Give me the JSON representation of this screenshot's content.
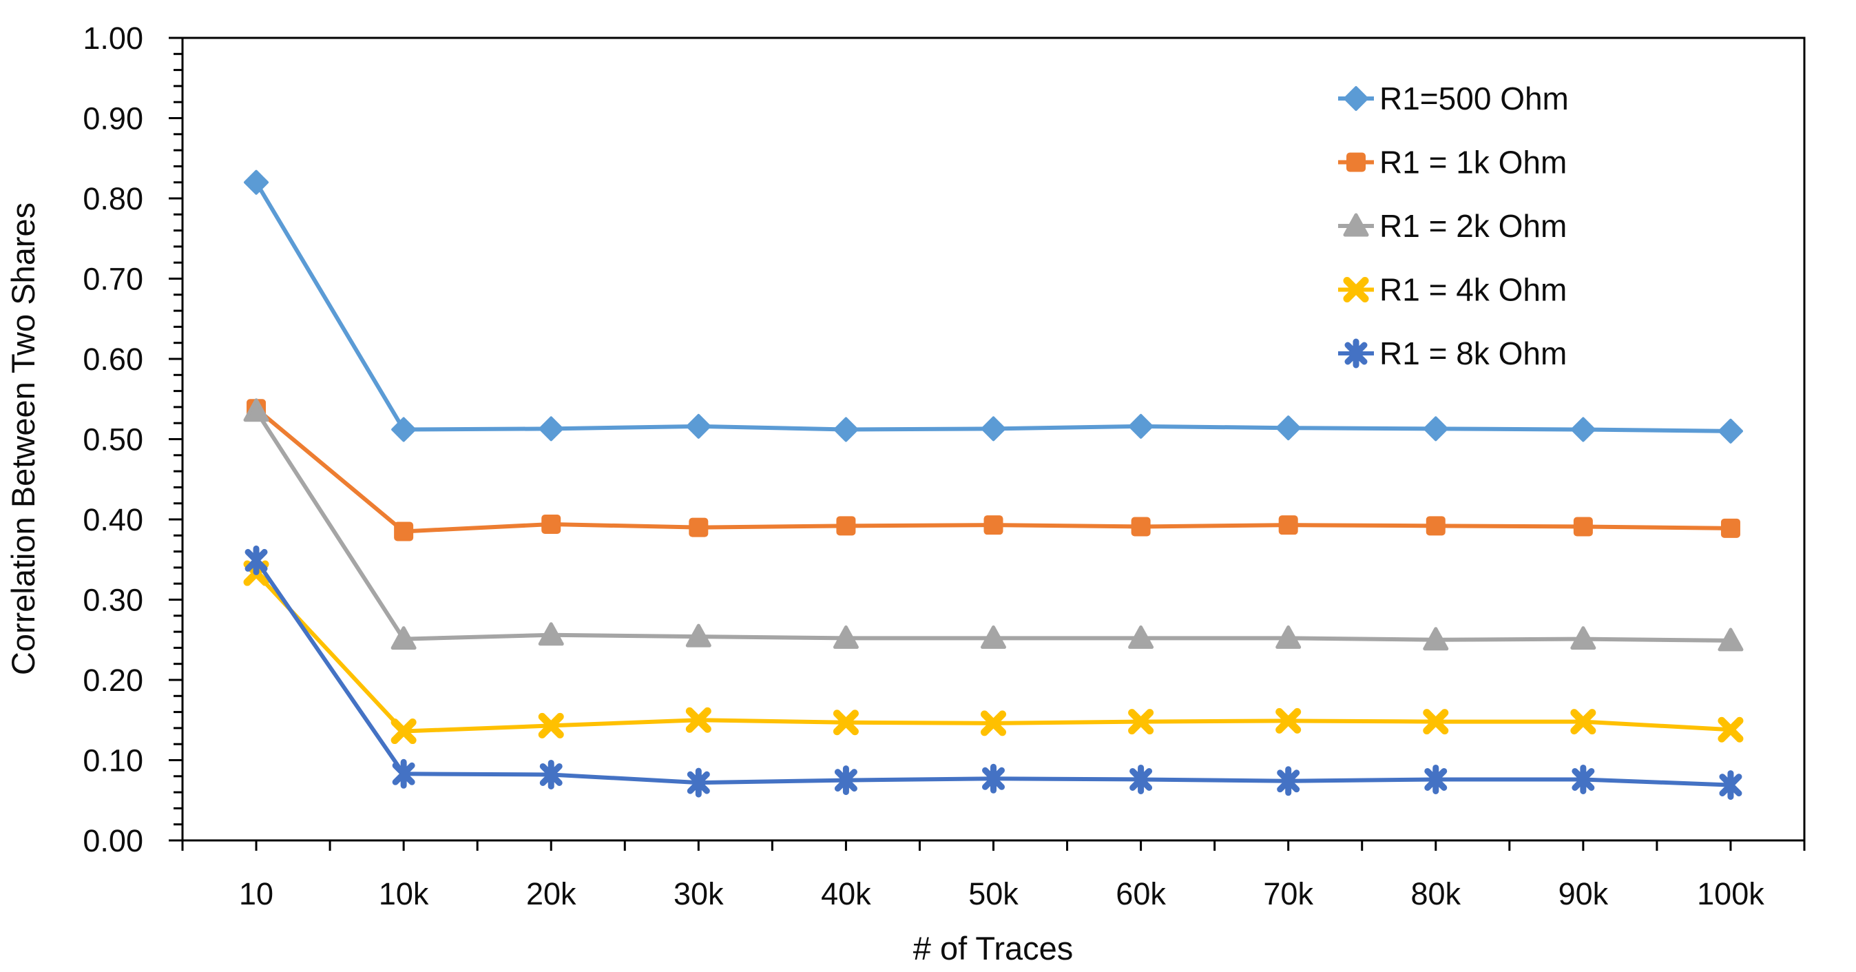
{
  "chart_data": {
    "type": "line",
    "title": "",
    "xlabel": "# of Traces",
    "ylabel": "Correlation Between Two Shares",
    "categories": [
      "10",
      "10k",
      "20k",
      "30k",
      "40k",
      "50k",
      "60k",
      "70k",
      "80k",
      "90k",
      "100k"
    ],
    "y_tick_labels": [
      "0.00",
      "0.10",
      "0.20",
      "0.30",
      "0.40",
      "0.50",
      "0.60",
      "0.70",
      "0.80",
      "0.90",
      "1.00"
    ],
    "ylim": [
      0,
      1
    ],
    "y_major_step": 0.1,
    "y_minor_step": 0.02,
    "grid": "off",
    "legend_position": "top-right-inside",
    "axis_color": "#000000",
    "background_color": "#ffffff",
    "series": [
      {
        "name": "R1=500 Ohm",
        "color": "#5B9BD5",
        "marker": "diamond",
        "values": [
          0.82,
          0.512,
          0.513,
          0.516,
          0.512,
          0.513,
          0.516,
          0.514,
          0.513,
          0.512,
          0.51
        ]
      },
      {
        "name": "R1 = 1k Ohm",
        "color": "#ED7D31",
        "marker": "square",
        "values": [
          0.538,
          0.385,
          0.394,
          0.39,
          0.392,
          0.393,
          0.391,
          0.393,
          0.392,
          0.391,
          0.389
        ]
      },
      {
        "name": "R1 = 2k Ohm",
        "color": "#A5A5A5",
        "marker": "triangle",
        "values": [
          0.535,
          0.251,
          0.256,
          0.254,
          0.252,
          0.252,
          0.252,
          0.252,
          0.25,
          0.251,
          0.249
        ]
      },
      {
        "name": "R1 = 4k Ohm",
        "color": "#FFC000",
        "marker": "x",
        "values": [
          0.333,
          0.136,
          0.143,
          0.15,
          0.147,
          0.146,
          0.148,
          0.149,
          0.148,
          0.148,
          0.138
        ]
      },
      {
        "name": "R1 = 8k Ohm",
        "color": "#4472C4",
        "marker": "star",
        "values": [
          0.349,
          0.083,
          0.082,
          0.072,
          0.075,
          0.077,
          0.076,
          0.074,
          0.076,
          0.076,
          0.069
        ]
      }
    ]
  }
}
